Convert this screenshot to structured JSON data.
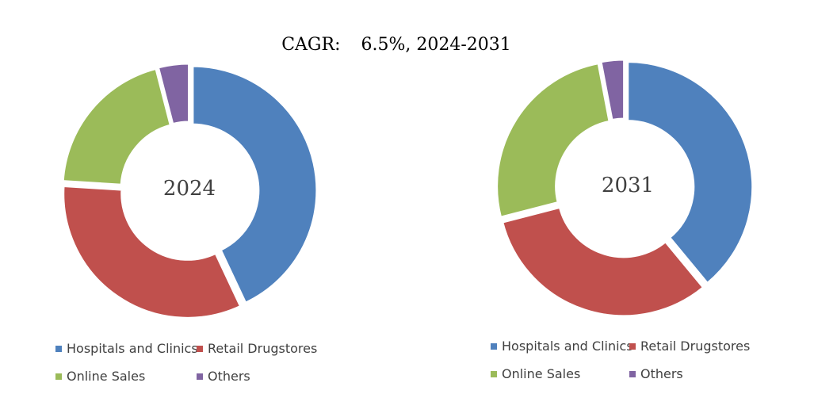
{
  "chart_data": {
    "type": "pie",
    "subtype": "donut",
    "title": {
      "label": "CAGR:",
      "value": "6.5%, 2024-2031"
    },
    "categories": [
      "Hospitals and Clinics",
      "Retail Drugstores",
      "Online Sales",
      "Others"
    ],
    "colors": [
      "#4F81BD",
      "#C0504D",
      "#9BBB59",
      "#8064A2"
    ],
    "charts": [
      {
        "year": "2024",
        "values": [
          43,
          33,
          20,
          4
        ]
      },
      {
        "year": "2031",
        "values": [
          39,
          32,
          26,
          3
        ]
      }
    ]
  }
}
